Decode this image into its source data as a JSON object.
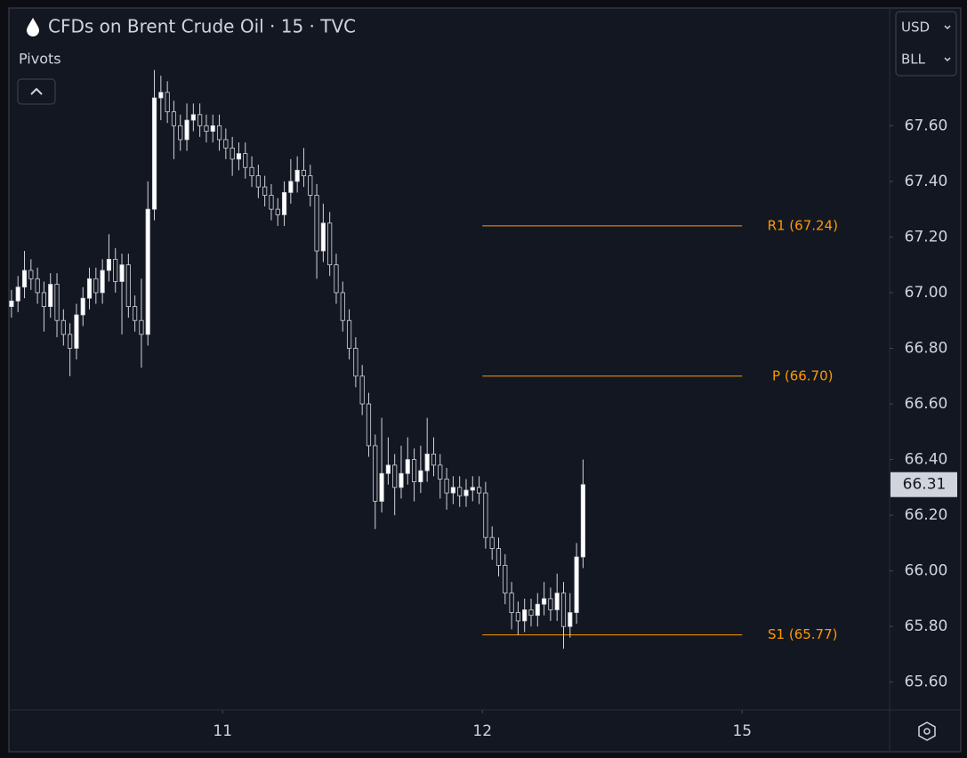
{
  "chart_data": {
    "type": "candlestick",
    "title": "CFDs on Brent Crude Oil · 15 · TVC",
    "indicator": "Pivots",
    "currency": "USD",
    "unit": "BLL",
    "up_color": "#ffffff",
    "down_color": "#131722",
    "wick_color": "#d1d4dc",
    "pivot_color": "#ff9800",
    "open": [
      66.95,
      66.97,
      67.02,
      67.08,
      67.05,
      67.0,
      66.95,
      67.03,
      66.9,
      66.85,
      66.8,
      66.92,
      66.98,
      67.05,
      67.0,
      67.08,
      67.12,
      67.04,
      67.1,
      66.95,
      66.9,
      66.85,
      67.3,
      67.7,
      67.72,
      67.65,
      67.6,
      67.55,
      67.62,
      67.64,
      67.6,
      67.58,
      67.6,
      67.55,
      67.52,
      67.48,
      67.5,
      67.45,
      67.42,
      67.38,
      67.35,
      67.3,
      67.28,
      67.36,
      67.4,
      67.44,
      67.42,
      67.35,
      67.15,
      67.25,
      67.1,
      67.0,
      66.9,
      66.8,
      66.7,
      66.6,
      66.45,
      66.25,
      66.35,
      66.38,
      66.3,
      66.35,
      66.4,
      66.32,
      66.36,
      66.42,
      66.38,
      66.33,
      66.28,
      66.3,
      66.27,
      66.29,
      66.3,
      66.28,
      66.12,
      66.08,
      66.02,
      65.92,
      65.85,
      65.82,
      65.86,
      65.84,
      65.88,
      65.9,
      65.86,
      65.92,
      65.8,
      65.85,
      66.05
    ],
    "high": [
      67.01,
      67.06,
      67.15,
      67.12,
      67.09,
      67.04,
      67.07,
      67.07,
      66.94,
      66.89,
      66.96,
      67.02,
      67.09,
      67.09,
      67.12,
      67.21,
      67.16,
      67.14,
      67.14,
      66.99,
      67.05,
      67.4,
      67.8,
      67.78,
      67.76,
      67.69,
      67.64,
      67.68,
      67.68,
      67.68,
      67.64,
      67.64,
      67.64,
      67.59,
      67.56,
      67.54,
      67.54,
      67.49,
      67.46,
      67.42,
      67.39,
      67.34,
      67.4,
      67.48,
      67.49,
      67.52,
      67.46,
      67.39,
      67.32,
      67.29,
      67.14,
      67.04,
      66.94,
      66.84,
      66.74,
      66.64,
      66.49,
      66.55,
      66.48,
      66.42,
      66.45,
      66.48,
      66.44,
      66.45,
      66.55,
      66.48,
      66.42,
      66.37,
      66.34,
      66.34,
      66.33,
      66.34,
      66.34,
      66.32,
      66.16,
      66.12,
      66.06,
      65.96,
      65.89,
      65.9,
      65.9,
      65.92,
      65.96,
      65.94,
      65.99,
      65.96,
      65.92,
      66.1,
      66.4
    ],
    "low": [
      66.91,
      66.93,
      66.98,
      67.01,
      66.96,
      66.86,
      66.91,
      66.84,
      66.81,
      66.7,
      66.76,
      66.88,
      66.94,
      66.96,
      66.96,
      67.04,
      67.0,
      66.85,
      66.91,
      66.86,
      66.73,
      66.81,
      67.26,
      67.62,
      67.61,
      67.48,
      67.51,
      67.51,
      67.58,
      67.56,
      67.54,
      67.54,
      67.51,
      67.48,
      67.42,
      67.44,
      67.41,
      67.38,
      67.34,
      67.31,
      67.26,
      67.24,
      67.24,
      67.32,
      67.36,
      67.38,
      67.31,
      67.05,
      67.11,
      67.06,
      66.96,
      66.86,
      66.76,
      66.66,
      66.56,
      66.41,
      66.15,
      66.21,
      66.31,
      66.2,
      66.26,
      66.31,
      66.25,
      66.28,
      66.32,
      66.34,
      66.26,
      66.22,
      66.24,
      66.23,
      66.23,
      66.25,
      66.24,
      66.08,
      66.04,
      65.98,
      65.88,
      65.79,
      65.77,
      65.78,
      65.8,
      65.8,
      65.84,
      65.82,
      65.82,
      65.72,
      65.76,
      65.81,
      66.01
    ],
    "close": [
      66.97,
      67.02,
      67.08,
      67.05,
      67.0,
      66.95,
      67.03,
      66.9,
      66.85,
      66.8,
      66.92,
      66.98,
      67.05,
      67.0,
      67.08,
      67.12,
      67.04,
      67.1,
      66.95,
      66.9,
      66.85,
      67.3,
      67.7,
      67.72,
      67.65,
      67.6,
      67.55,
      67.62,
      67.64,
      67.6,
      67.58,
      67.6,
      67.55,
      67.52,
      67.48,
      67.5,
      67.45,
      67.42,
      67.38,
      67.35,
      67.3,
      67.28,
      67.36,
      67.4,
      67.44,
      67.42,
      67.35,
      67.15,
      67.25,
      67.1,
      67.0,
      66.9,
      66.8,
      66.7,
      66.6,
      66.45,
      66.25,
      66.35,
      66.38,
      66.3,
      66.35,
      66.4,
      66.32,
      66.36,
      66.42,
      66.38,
      66.33,
      66.28,
      66.3,
      66.27,
      66.29,
      66.3,
      66.28,
      66.12,
      66.08,
      66.02,
      65.92,
      65.85,
      65.82,
      65.86,
      65.84,
      65.88,
      65.9,
      65.86,
      65.92,
      65.8,
      65.85,
      66.05,
      66.31
    ],
    "last_price": {
      "value": 66.31,
      "label": "66.31"
    },
    "pivots": [
      {
        "name": "R1 (67.24)",
        "value": 67.24
      },
      {
        "name": "P (66.70)",
        "value": 66.7
      },
      {
        "name": "S1 (65.77)",
        "value": 65.77
      }
    ],
    "xlim": [
      -0.4,
      135.2
    ],
    "xticks": [
      {
        "value": 32.5,
        "label": "11"
      },
      {
        "value": 72.5,
        "label": "12"
      },
      {
        "value": 112.5,
        "label": "15"
      }
    ],
    "ylim": [
      65.5,
      68.02
    ],
    "yticks": [
      {
        "value": 65.6,
        "label": "65.60"
      },
      {
        "value": 65.8,
        "label": "65.80"
      },
      {
        "value": 66.0,
        "label": "66.00"
      },
      {
        "value": 66.2,
        "label": "66.20"
      },
      {
        "value": 66.4,
        "label": "66.40"
      },
      {
        "value": 66.6,
        "label": "66.60"
      },
      {
        "value": 66.8,
        "label": "66.80"
      },
      {
        "value": 67.0,
        "label": "67.00"
      },
      {
        "value": 67.2,
        "label": "67.20"
      },
      {
        "value": 67.4,
        "label": "67.40"
      },
      {
        "value": 67.6,
        "label": "67.60"
      }
    ]
  }
}
